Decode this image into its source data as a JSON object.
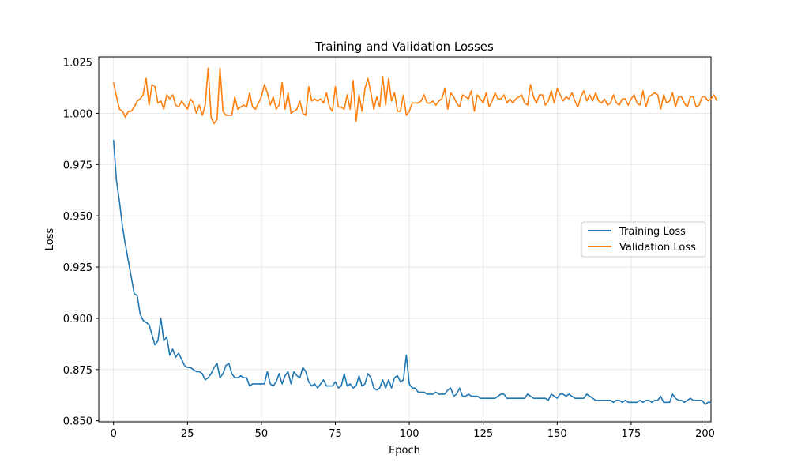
{
  "chart_data": {
    "type": "line",
    "title": "Training and Validation Losses",
    "xlabel": "Epoch",
    "ylabel": "Loss",
    "xlim": [
      -5,
      202
    ],
    "ylim": [
      0.8495,
      1.0275
    ],
    "xticks": [
      0,
      25,
      50,
      75,
      100,
      125,
      150,
      175,
      200
    ],
    "yticks": [
      0.85,
      0.875,
      0.9,
      0.925,
      0.95,
      0.975,
      1.0,
      1.025
    ],
    "ytick_labels": [
      "0.850",
      "0.875",
      "0.900",
      "0.925",
      "0.950",
      "0.975",
      "1.000",
      "1.025"
    ],
    "grid": true,
    "legend_position": "center-right",
    "series": [
      {
        "name": "Training Loss",
        "color": "#1f77b4",
        "values": [
          0.987,
          0.967,
          0.957,
          0.945,
          0.936,
          0.928,
          0.92,
          0.912,
          0.911,
          0.902,
          0.899,
          0.898,
          0.897,
          0.892,
          0.887,
          0.889,
          0.9,
          0.889,
          0.891,
          0.882,
          0.885,
          0.881,
          0.883,
          0.88,
          0.877,
          0.876,
          0.876,
          0.875,
          0.874,
          0.874,
          0.873,
          0.87,
          0.871,
          0.873,
          0.876,
          0.878,
          0.871,
          0.873,
          0.877,
          0.878,
          0.873,
          0.871,
          0.871,
          0.872,
          0.871,
          0.871,
          0.867,
          0.868,
          0.868,
          0.868,
          0.868,
          0.868,
          0.874,
          0.868,
          0.867,
          0.869,
          0.873,
          0.868,
          0.872,
          0.874,
          0.868,
          0.874,
          0.872,
          0.871,
          0.876,
          0.874,
          0.869,
          0.867,
          0.868,
          0.866,
          0.868,
          0.87,
          0.867,
          0.867,
          0.867,
          0.869,
          0.866,
          0.867,
          0.873,
          0.867,
          0.868,
          0.866,
          0.867,
          0.872,
          0.867,
          0.868,
          0.873,
          0.871,
          0.866,
          0.865,
          0.866,
          0.87,
          0.866,
          0.87,
          0.866,
          0.871,
          0.872,
          0.869,
          0.87,
          0.882,
          0.868,
          0.866,
          0.866,
          0.864,
          0.864,
          0.864,
          0.863,
          0.863,
          0.863,
          0.864,
          0.863,
          0.863,
          0.863,
          0.865,
          0.866,
          0.862,
          0.863,
          0.866,
          0.862,
          0.862,
          0.863,
          0.862,
          0.862,
          0.862,
          0.861,
          0.861,
          0.861,
          0.861,
          0.861,
          0.861,
          0.862,
          0.863,
          0.863,
          0.861,
          0.861,
          0.861,
          0.861,
          0.861,
          0.861,
          0.861,
          0.863,
          0.862,
          0.861,
          0.861,
          0.861,
          0.861,
          0.861,
          0.86,
          0.863,
          0.862,
          0.861,
          0.863,
          0.863,
          0.862,
          0.863,
          0.862,
          0.861,
          0.861,
          0.861,
          0.861,
          0.863,
          0.862,
          0.861,
          0.86,
          0.86,
          0.86,
          0.86,
          0.86,
          0.86,
          0.859,
          0.86,
          0.86,
          0.859,
          0.86,
          0.859,
          0.859,
          0.859,
          0.859,
          0.86,
          0.859,
          0.86,
          0.86,
          0.859,
          0.86,
          0.86,
          0.862,
          0.859,
          0.859,
          0.859,
          0.863,
          0.861,
          0.86,
          0.86,
          0.859,
          0.86,
          0.861,
          0.86,
          0.86,
          0.86,
          0.86,
          0.858,
          0.859,
          0.859
        ]
      },
      {
        "name": "Validation Loss",
        "color": "#ff7f0e",
        "values": [
          1.015,
          1.008,
          1.002,
          1.001,
          0.998,
          1.001,
          1.001,
          1.003,
          1.006,
          1.007,
          1.009,
          1.017,
          1.004,
          1.014,
          1.013,
          1.005,
          1.006,
          1.002,
          1.009,
          1.007,
          1.009,
          1.004,
          1.003,
          1.006,
          1.004,
          1.002,
          1.007,
          1.005,
          1.0,
          1.004,
          0.999,
          1.004,
          1.022,
          0.998,
          0.995,
          0.997,
          1.022,
          1.001,
          0.999,
          0.999,
          0.999,
          1.008,
          1.002,
          1.003,
          1.004,
          1.003,
          1.01,
          1.003,
          1.002,
          1.005,
          1.008,
          1.014,
          1.01,
          1.004,
          1.008,
          1.002,
          1.004,
          1.015,
          1.002,
          1.01,
          1.0,
          1.001,
          1.002,
          1.006,
          1.0,
          0.999,
          1.013,
          1.006,
          1.007,
          1.006,
          1.007,
          1.005,
          1.01,
          1.003,
          1.001,
          1.013,
          1.003,
          1.003,
          1.002,
          1.009,
          1.002,
          1.016,
          0.996,
          1.009,
          1.001,
          1.012,
          1.017,
          1.01,
          1.002,
          1.008,
          1.003,
          1.018,
          1.004,
          1.017,
          1.006,
          1.01,
          1.001,
          1.001,
          1.009,
          0.999,
          1.001,
          1.005,
          1.005,
          1.005,
          1.006,
          1.009,
          1.005,
          1.005,
          1.006,
          1.004,
          1.006,
          1.007,
          1.012,
          1.002,
          1.01,
          1.008,
          1.005,
          1.003,
          1.009,
          1.008,
          1.007,
          1.011,
          1.001,
          1.009,
          1.007,
          1.005,
          1.01,
          1.003,
          1.006,
          1.01,
          1.007,
          1.007,
          1.009,
          1.005,
          1.007,
          1.005,
          1.007,
          1.008,
          1.009,
          1.005,
          1.004,
          1.014,
          1.008,
          1.005,
          1.009,
          1.009,
          1.004,
          1.006,
          1.011,
          1.005,
          1.012,
          1.009,
          1.006,
          1.008,
          1.007,
          1.01,
          1.006,
          1.003,
          1.008,
          1.011,
          1.006,
          1.009,
          1.006,
          1.01,
          1.006,
          1.005,
          1.007,
          1.004,
          1.005,
          1.009,
          1.005,
          1.004,
          1.007,
          1.007,
          1.004,
          1.007,
          1.009,
          1.005,
          1.004,
          1.011,
          1.003,
          1.008,
          1.009,
          1.01,
          1.009,
          1.002,
          1.009,
          1.005,
          1.006,
          1.01,
          1.003,
          1.008,
          1.008,
          1.005,
          1.003,
          1.008,
          1.008,
          1.003,
          1.004,
          1.008,
          1.008,
          1.006,
          1.007,
          1.009,
          1.006
        ]
      }
    ]
  }
}
